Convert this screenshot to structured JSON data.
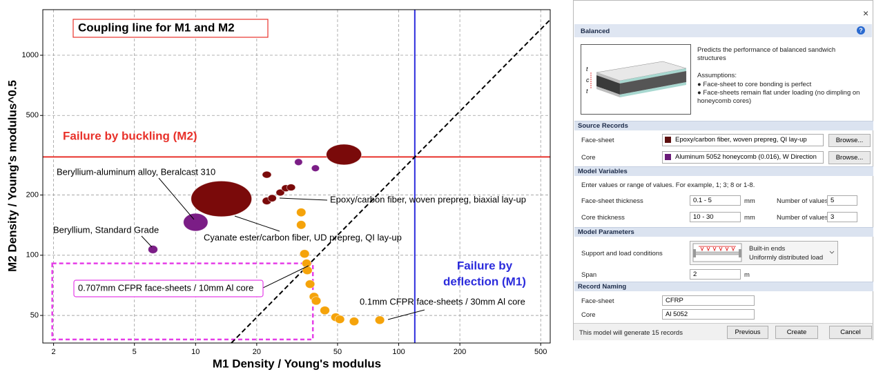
{
  "chart_data": {
    "type": "bubble",
    "title": "Coupling line for M1 and M2",
    "x_label": "M1 Density / Young's modulus",
    "y_label": "M2 Density / Young's modulus^0.5",
    "log_x": true,
    "log_y": true,
    "grid": true,
    "xlim": [
      1.77,
      557
    ],
    "ylim": [
      36.4,
      1690
    ],
    "xticks": [
      2,
      5,
      10,
      20,
      50,
      100,
      200,
      500
    ],
    "yticks": [
      50,
      100,
      200,
      500,
      1000
    ],
    "series": [
      {
        "color": "#7a0a0a",
        "points": [
          {
            "x": [
              9.5,
              18.9
            ],
            "y": [
              156,
              235
            ]
          },
          {
            "x": [
              44,
              65.6
            ],
            "y": [
              283,
              359
            ]
          },
          {
            "x": [
              21.3,
              23.6
            ],
            "y": [
              243,
              263
            ]
          },
          {
            "x": [
              21.3,
              23.6
            ],
            "y": [
              179,
              195
            ]
          },
          {
            "x": [
              22.7,
              25.0
            ],
            "y": [
              185,
              201
            ]
          },
          {
            "x": [
              24.9,
              27.4
            ],
            "y": [
              198,
              214
            ]
          },
          {
            "x": [
              26.5,
              29.2
            ],
            "y": [
              208,
              225
            ]
          },
          {
            "x": [
              28.1,
              31.0
            ],
            "y": [
              210,
              227
            ]
          }
        ]
      },
      {
        "color": "#7b1d86",
        "points": [
          {
            "x": [
              8.71,
              11.5
            ],
            "y": [
              132,
              162
            ]
          },
          {
            "x": [
              5.84,
              6.51
            ],
            "y": [
              102,
              112
            ]
          },
          {
            "x": [
              30.7,
              33.6
            ],
            "y": [
              281,
              304
            ]
          },
          {
            "x": [
              37.2,
              40.7
            ],
            "y": [
              262,
              283
            ]
          }
        ]
      },
      {
        "color": "#f5a30a",
        "points": [
          {
            "x": [
              31.4,
              34.9
            ],
            "y": [
              156,
              172
            ]
          },
          {
            "x": [
              31.4,
              34.9
            ],
            "y": [
              135,
              149
            ]
          },
          {
            "x": [
              32.6,
              36.3
            ],
            "y": [
              96.9,
              106.6
            ]
          },
          {
            "x": [
              33.4,
              37.1
            ],
            "y": [
              86.7,
              95.5
            ]
          },
          {
            "x": [
              33.6,
              37.5
            ],
            "y": [
              80.1,
              88.1
            ]
          },
          {
            "x": [
              34.7,
              38.6
            ],
            "y": [
              68.4,
              75.2
            ]
          },
          {
            "x": [
              36.3,
              40.4
            ],
            "y": [
              59.2,
              65.1
            ]
          },
          {
            "x": [
              37.2,
              41.4
            ],
            "y": [
              56.4,
              62.1
            ]
          },
          {
            "x": [
              41.0,
              45.7
            ],
            "y": [
              50.5,
              55.6
            ]
          },
          {
            "x": [
              46.4,
              51.7
            ],
            "y": [
              46.7,
              51.4
            ]
          },
          {
            "x": [
              48.6,
              54.1
            ],
            "y": [
              45.6,
              50.1
            ]
          },
          {
            "x": [
              57.2,
              63.6
            ],
            "y": [
              44.5,
              49.0
            ]
          },
          {
            "x": [
              76.5,
              85.1
            ],
            "y": [
              45.2,
              49.7
            ]
          }
        ]
      }
    ],
    "horizontal_line": {
      "label": "Failure by buckling (M2)",
      "color": "#e8312a",
      "y": 310
    },
    "vertical_line": {
      "label_lines": [
        "Failure by",
        "deflection (M1)"
      ],
      "color": "#2b2bdc",
      "x": 120
    },
    "coupling_line": {
      "x": [
        15,
        557
      ],
      "y": [
        36.4,
        1507
      ],
      "color": "#000000"
    },
    "highlight_box": {
      "x": [
        1.97,
        37.8
      ],
      "y": [
        37.9,
        91
      ],
      "color": "#e53de8"
    },
    "annotations": [
      "Beryllium-aluminum alloy, Beralcast 310",
      "Beryllium, Standard Grade",
      "Epoxy/carbon fiber, woven prepreg, biaxial lay-up",
      "Cyanate ester/carbon fiber, UD prepreg, QI lay-up",
      "0.707mm CFPR face-sheets / 10mm Al core",
      "0.1mm CFPR face-sheets / 30mm Al core"
    ]
  },
  "dialog": {
    "close": "×",
    "title": "Balanced",
    "help": "?",
    "image_labels": [
      "t",
      "c",
      "t"
    ],
    "description": "Predicts the performance of balanced sandwich structures",
    "assumptions_title": "Assumptions:",
    "assumptions": [
      "● Face-sheet to core bonding is perfect",
      "● Face-sheets remain flat under loading (no dimpling on honeycomb cores)"
    ],
    "source_records": {
      "title": "Source Records",
      "rows": [
        {
          "label": "Face-sheet",
          "value": "Epoxy/carbon fiber, woven prepreg, QI lay-up",
          "color": "#5c0f0f",
          "button": "Browse..."
        },
        {
          "label": "Core",
          "value": "Aluminum 5052 honeycomb (0.016), W Direction",
          "color": "#6a1b78",
          "button": "Browse..."
        }
      ]
    },
    "model_variables": {
      "title": "Model Variables",
      "hint": "Enter values or range of values. For example, 1; 3; 8 or 1-8.",
      "rows": [
        {
          "label": "Face-sheet thickness",
          "value": "0.1 - 5",
          "unit": "mm",
          "count_label": "Number of values:",
          "count": "5"
        },
        {
          "label": "Core thickness",
          "value": "10 - 30",
          "unit": "mm",
          "count_label": "Number of values:",
          "count": "3"
        }
      ]
    },
    "model_parameters": {
      "title": "Model Parameters",
      "support_label": "Support and load conditions",
      "support_value": [
        "Built-in ends",
        "Uniformly distributed load"
      ],
      "span_label": "Span",
      "span": "2",
      "span_unit": "m"
    },
    "record_naming": {
      "title": "Record Naming",
      "rows": [
        {
          "label": "Face-sheet",
          "value": "CFRP"
        },
        {
          "label": "Core",
          "value": "Al 5052"
        }
      ]
    },
    "footer": {
      "message": "This model will generate 15 records",
      "buttons": [
        "Previous",
        "Create",
        "Cancel"
      ]
    }
  }
}
